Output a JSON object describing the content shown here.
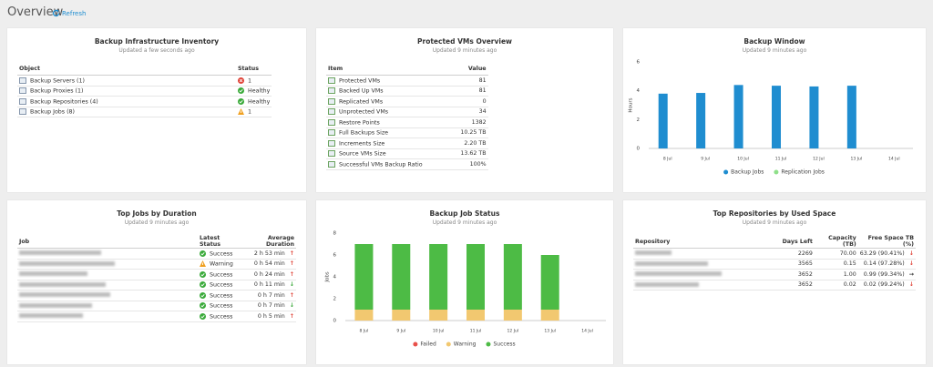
{
  "header": {
    "title": "Overview",
    "refresh": "Refresh"
  },
  "inventory": {
    "title": "Backup Infrastructure Inventory",
    "subtitle": "Updated a few seconds ago",
    "columns": [
      "Object",
      "Status"
    ],
    "rows": [
      {
        "object": "Backup Servers (1)",
        "status": "1",
        "state": "error"
      },
      {
        "object": "Backup Proxies (1)",
        "status": "Healthy",
        "state": "ok"
      },
      {
        "object": "Backup Repositories (4)",
        "status": "Healthy",
        "state": "ok"
      },
      {
        "object": "Backup Jobs (8)",
        "status": "1",
        "state": "warning"
      }
    ]
  },
  "protected_vms": {
    "title": "Protected VMs Overview",
    "subtitle": "Updated 9 minutes ago",
    "columns": [
      "Item",
      "Value"
    ],
    "rows": [
      {
        "item": "Protected VMs",
        "value": "81"
      },
      {
        "item": "Backed Up VMs",
        "value": "81"
      },
      {
        "item": "Replicated VMs",
        "value": "0"
      },
      {
        "item": "Unprotected VMs",
        "value": "34"
      },
      {
        "item": "Restore Points",
        "value": "1382"
      },
      {
        "item": "Full Backups Size",
        "value": "10.25 TB"
      },
      {
        "item": "Increments Size",
        "value": "2.20 TB"
      },
      {
        "item": "Source VMs Size",
        "value": "13.62 TB"
      },
      {
        "item": "Successful VMs Backup Ratio",
        "value": "100%"
      }
    ]
  },
  "top_jobs": {
    "title": "Top Jobs by Duration",
    "subtitle": "Updated 9 minutes ago",
    "columns": [
      "Job",
      "Latest Status",
      "Average Duration"
    ],
    "rows": [
      {
        "status": "Success",
        "state": "ok",
        "duration": "2 h 53 min",
        "trend": "↑",
        "trend_color": "#e0453a"
      },
      {
        "status": "Warning",
        "state": "warning",
        "duration": "0 h 54 min",
        "trend": "↑",
        "trend_color": "#e0453a"
      },
      {
        "status": "Success",
        "state": "ok",
        "duration": "0 h 24 min",
        "trend": "↑",
        "trend_color": "#e0453a"
      },
      {
        "status": "Success",
        "state": "ok",
        "duration": "0 h 11 min",
        "trend": "↓",
        "trend_color": "#3aa83a"
      },
      {
        "status": "Success",
        "state": "ok",
        "duration": "0 h 7 min",
        "trend": "↑",
        "trend_color": "#e0453a"
      },
      {
        "status": "Success",
        "state": "ok",
        "duration": "0 h 7 min",
        "trend": "↓",
        "trend_color": "#3aa83a"
      },
      {
        "status": "Success",
        "state": "ok",
        "duration": "0 h 5 min",
        "trend": "↑",
        "trend_color": "#e0453a"
      }
    ]
  },
  "top_repositories": {
    "title": "Top Repositories by Used Space",
    "subtitle": "Updated 9 minutes ago",
    "columns": [
      "Repository",
      "Days Left",
      "Capacity (TB)",
      "Free Space TB (%)"
    ],
    "rows": [
      {
        "days_left": "2269",
        "capacity": "70.00",
        "free": "63.29 (90.41%)",
        "trend": "↓",
        "trend_color": "#e0453a"
      },
      {
        "days_left": "3565",
        "capacity": "0.15",
        "free": "0.14 (97.28%)",
        "trend": "↓",
        "trend_color": "#e0453a"
      },
      {
        "days_left": "3652",
        "capacity": "1.00",
        "free": "0.99 (99.34%)",
        "trend": "→",
        "trend_color": "#333333"
      },
      {
        "days_left": "3652",
        "capacity": "0.02",
        "free": "0.02 (99.24%)",
        "trend": "↓",
        "trend_color": "#e0453a"
      }
    ]
  },
  "chart_data": [
    {
      "type": "bar",
      "title": "Backup Window",
      "subtitle": "Updated 9 minutes ago",
      "y_label": "Hours",
      "categories": [
        "8 Jul",
        "9 Jul",
        "10 Jul",
        "11 Jul",
        "12 Jul",
        "13 Jul",
        "14 Jul"
      ],
      "series": [
        {
          "name": "Backup Jobs",
          "color": "#1f8dd0",
          "values": [
            3.8,
            3.85,
            4.4,
            4.35,
            4.3,
            4.35,
            null
          ]
        },
        {
          "name": "Replication Jobs",
          "color": "#8fe08a",
          "values": [
            0,
            0,
            0,
            0,
            0,
            0,
            null
          ]
        }
      ],
      "ylim": [
        0,
        6
      ],
      "yticks": [
        0,
        2,
        4,
        6
      ],
      "grid": false,
      "legend": "bottom"
    },
    {
      "type": "stacked_bar",
      "title": "Backup Job Status",
      "subtitle": "Updated 9 minutes ago",
      "y_label": "Jobs",
      "categories": [
        "8 Jul",
        "9 Jul",
        "10 Jul",
        "11 Jul",
        "12 Jul",
        "13 Jul",
        "14 Jul"
      ],
      "series": [
        {
          "name": "Failed",
          "color": "#e8504a",
          "values": [
            0,
            0,
            0,
            0,
            0,
            0,
            null
          ]
        },
        {
          "name": "Warning",
          "color": "#f2c870",
          "values": [
            1,
            1,
            1,
            1,
            1,
            1,
            null
          ]
        },
        {
          "name": "Success",
          "color": "#4dbb45",
          "values": [
            6,
            6,
            6,
            6,
            6,
            5,
            null
          ]
        }
      ],
      "ylim": [
        0,
        8
      ],
      "yticks": [
        0,
        2,
        4,
        6,
        8
      ],
      "grid": false,
      "legend": "bottom"
    }
  ]
}
